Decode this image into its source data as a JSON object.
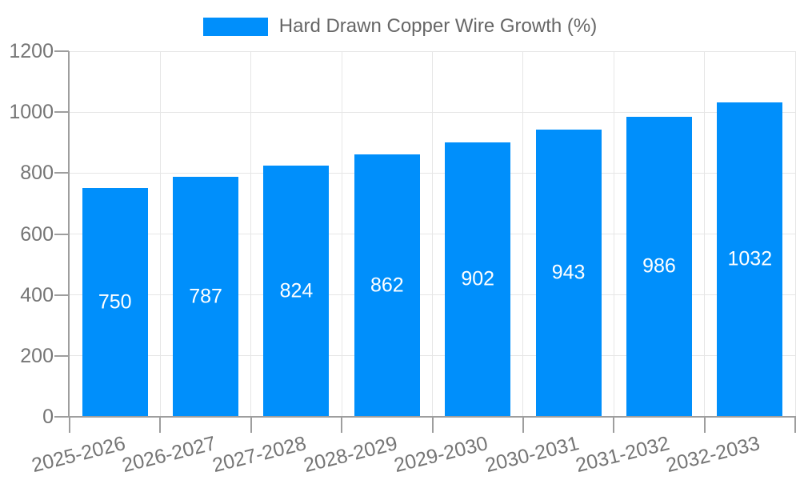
{
  "chart_data": {
    "type": "bar",
    "title": "Hard Drawn Copper Wire Growth (%)",
    "categories": [
      "2025-2026",
      "2026-2027",
      "2027-2028",
      "2028-2029",
      "2029-2030",
      "2030-2031",
      "2031-2032",
      "2032-2033"
    ],
    "values": [
      750,
      787,
      824,
      862,
      902,
      943,
      986,
      1032
    ],
    "xlabel": "",
    "ylabel": "",
    "ylim": [
      0,
      1200
    ],
    "yticks": [
      0,
      200,
      400,
      600,
      800,
      1000,
      1200
    ],
    "grid": true,
    "legend_position": "top",
    "colors": {
      "bar": "#008FFB",
      "bar_value_label": "#ffffff",
      "axis": "#9e9e9e",
      "gridline": "#e6e6e6",
      "tick_label": "#757575",
      "legend_text": "#666666",
      "background": "#ffffff"
    }
  }
}
